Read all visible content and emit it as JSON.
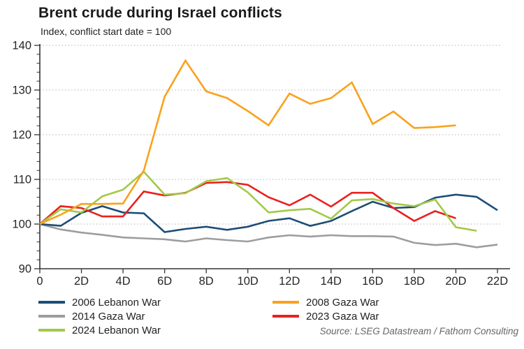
{
  "header": {
    "title": "Brent crude during Israel conflicts",
    "subtitle": "Index, conflict start date = 100"
  },
  "source": "Source: LSEG Datastream / Fathom Consulting",
  "chart_data": {
    "type": "line",
    "title": "Brent crude during Israel conflicts",
    "subtitle": "Index, conflict start date = 100",
    "x_axis": {
      "unit": "days since conflict start",
      "tick_days": [
        0,
        2,
        4,
        6,
        8,
        10,
        12,
        14,
        16,
        18,
        20,
        22
      ],
      "tick_labels": [
        "0",
        "2D",
        "4D",
        "6D",
        "8D",
        "10D",
        "12D",
        "14D",
        "16D",
        "18D",
        "20D",
        "22D"
      ],
      "xlim": [
        0,
        22
      ]
    },
    "y_axis": {
      "tick_values": [
        90,
        100,
        110,
        120,
        130,
        140
      ],
      "gridline_values": [
        100,
        110,
        120,
        130,
        140
      ],
      "minor_tick_step": 2,
      "ylim": [
        90,
        140
      ]
    },
    "grid": "horizontal-dotted",
    "legend_position": "bottom",
    "legend_columns": [
      [
        "2006 Lebanon War",
        "2014 Gaza War",
        "2024 Lebanon War"
      ],
      [
        "2008 Gaza War",
        "2023 Gaza War"
      ]
    ],
    "series": [
      {
        "name": "2006 Lebanon War",
        "color": "#1C4D77",
        "z": 2,
        "x_start": 0,
        "values": [
          100,
          99.6,
          102.5,
          104,
          102.6,
          102.4,
          98.2,
          98.9,
          99.4,
          98.7,
          99.4,
          100.7,
          101.3,
          99.6,
          100.7,
          102.9,
          105,
          103.6,
          103.8,
          105.9,
          106.6,
          106.1,
          103.1
        ]
      },
      {
        "name": "2008 Gaza War",
        "color": "#F9A21C",
        "z": 5,
        "x_start": 0,
        "values": [
          100,
          102.1,
          104.5,
          104.5,
          104.6,
          112,
          128.5,
          136.6,
          129.7,
          128.2,
          125.3,
          122.1,
          129.2,
          126.9,
          128.2,
          131.7,
          122.4,
          125.2,
          121.5,
          121.7,
          122.1
        ]
      },
      {
        "name": "2014 Gaza War",
        "color": "#9D9D9D",
        "z": 1,
        "x_start": 0,
        "values": [
          100,
          98.8,
          98.1,
          97.6,
          97,
          96.8,
          96.6,
          96.1,
          96.8,
          96.4,
          96.1,
          97,
          97.5,
          97.2,
          97.5,
          97.3,
          97.3,
          97.2,
          95.8,
          95.3,
          95.6,
          94.8,
          95.4
        ]
      },
      {
        "name": "2023 Gaza War",
        "color": "#E8211D",
        "z": 3,
        "x_start": 0,
        "values": [
          100,
          104,
          103.6,
          101.7,
          101.7,
          107.3,
          106.4,
          107,
          109.2,
          109.4,
          108.8,
          106,
          104.2,
          106.6,
          103.9,
          107,
          107,
          103.6,
          100.7,
          102.9,
          101.3
        ]
      },
      {
        "name": "2024 Lebanon War",
        "color": "#A2C948",
        "z": 4,
        "x_start": 0,
        "values": [
          100,
          103.3,
          102.6,
          106.2,
          107.7,
          111.7,
          106.6,
          106.9,
          109.6,
          110.3,
          107.1,
          102.6,
          103.1,
          103.4,
          101.2,
          105.3,
          105.6,
          104.6,
          104,
          105.5,
          99.3,
          98.5
        ]
      }
    ]
  }
}
